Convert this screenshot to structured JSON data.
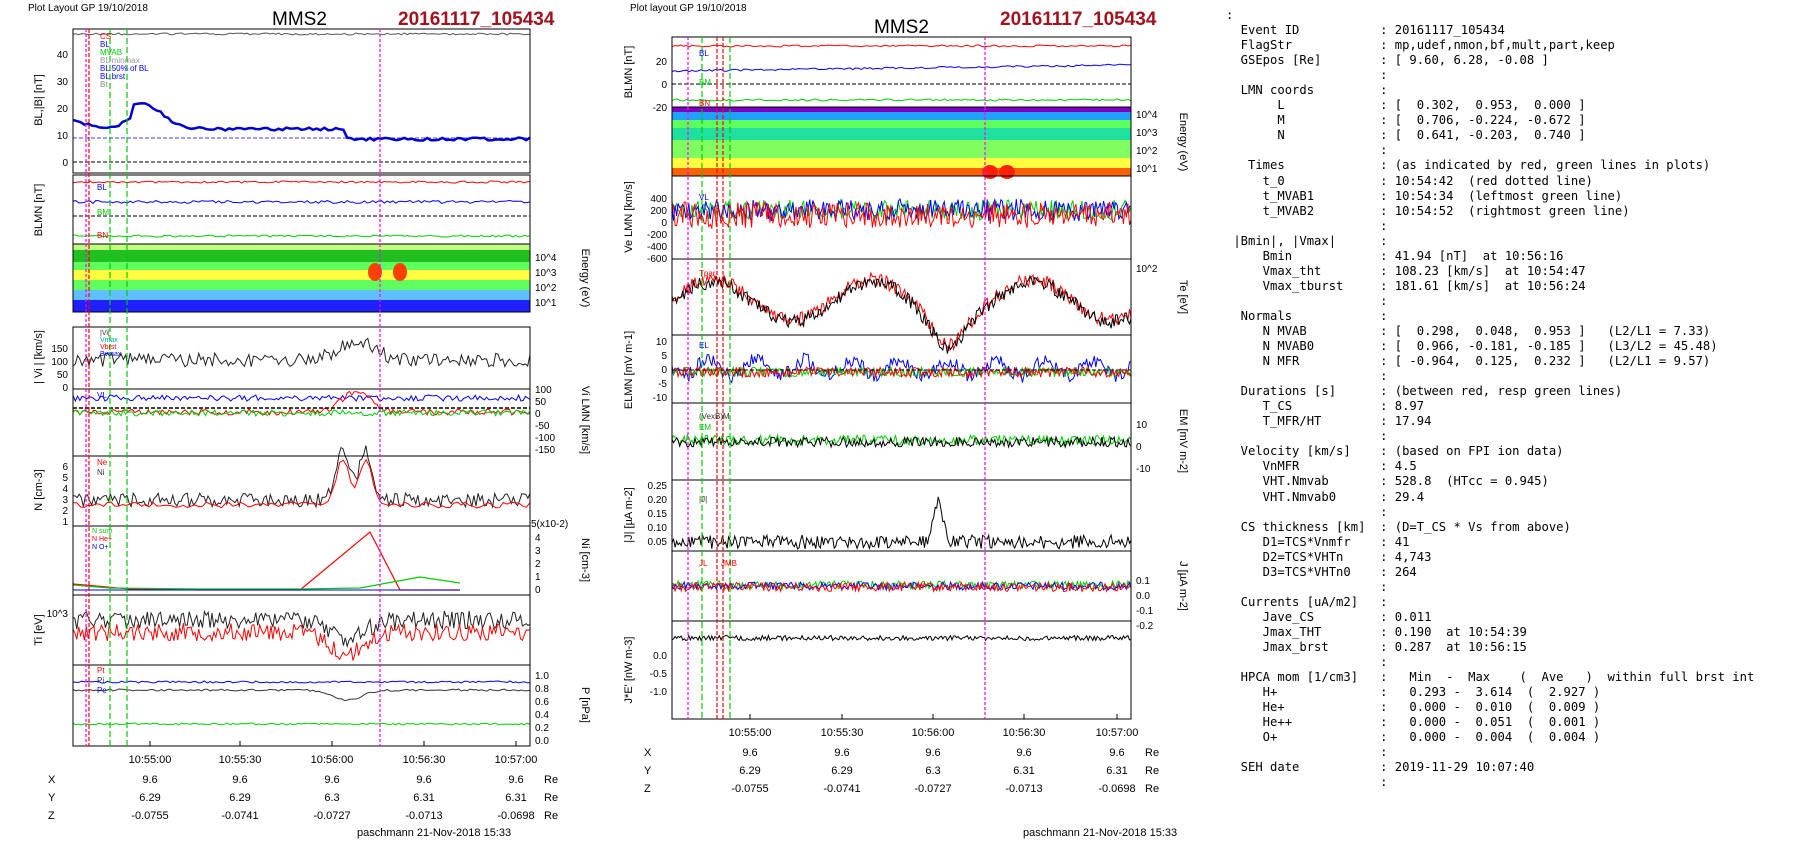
{
  "left_header": {
    "plot_label": "Plot Layout GP 19/10/2018",
    "spacecraft": "MMS2",
    "event": "20161117_105434"
  },
  "mid_header": {
    "plot_label": "Plot layout GP 19/10/2018",
    "spacecraft": "MMS2",
    "event": "20161117_105434"
  },
  "footer_left": "paschmann 21-Nov-2018 15:33",
  "footer_mid": "paschmann 21-Nov-2018 15:33",
  "colors": {
    "event": "#a0141e",
    "red": "#ff0000",
    "blue": "#0000ff",
    "green": "#00cc00",
    "magenta": "#ff00ff",
    "black": "#000000"
  },
  "time_ticks": [
    "10:55:00",
    "10:55:30",
    "10:56:00",
    "10:56:30",
    "10:57:00"
  ],
  "ephem": {
    "rows": [
      {
        "label": "X",
        "values": [
          "9.6",
          "9.6",
          "9.6",
          "9.6",
          "9.6"
        ],
        "unit": "Re"
      },
      {
        "label": "Y",
        "values": [
          "6.29",
          "6.29",
          "6.3",
          "6.31",
          "6.31"
        ],
        "unit": "Re"
      },
      {
        "label": "Z",
        "values": [
          "-0.0755",
          "-0.0741",
          "-0.0727",
          "-0.0713",
          "-0.0698"
        ],
        "unit": "Re"
      }
    ]
  },
  "left_panels": {
    "p1": {
      "ylabel": "BL,|B| [nT]",
      "legend": [
        "CS",
        "BL",
        "MVAB",
        "BL minmax",
        "BL 50% of BL",
        "BL brst",
        "Bt"
      ],
      "ticks": [
        "0",
        "10",
        "20",
        "30",
        "40"
      ]
    },
    "p2": {
      "ylabel": "BLMN [nT]",
      "legend": [
        "BL",
        "BM",
        "BN"
      ],
      "ticks": []
    },
    "p3": {
      "ylabel": "Energy (eV)",
      "ticks": [
        "10^1",
        "10^2",
        "10^3",
        "10^4"
      ]
    },
    "p4": {
      "ylabel": "| Vi | [km/s]",
      "legend": [
        "|Vi|",
        "Vmax",
        "Vbrst",
        "Bvmax"
      ],
      "ticks": [
        "0",
        "50",
        "100",
        "150"
      ]
    },
    "p5": {
      "ylabel": "Vi LMN [km/s]",
      "legend": [
        "VL"
      ],
      "ticks": [
        "100",
        "50",
        "0",
        "-50",
        "-100",
        "-150"
      ]
    },
    "p6": {
      "ylabel": "N [cm-3]",
      "legend": [
        "Ne",
        "Ni"
      ],
      "ticks": [
        "1",
        "2",
        "3",
        "4",
        "5",
        "6"
      ]
    },
    "p7": {
      "ylabel": "Ni [cm-3]",
      "legend": [
        "N sum",
        "N He+",
        "N O+"
      ],
      "ticks": [
        "0",
        "1",
        "2",
        "3",
        "4"
      ],
      "scale": "5(x10-2)"
    },
    "p8": {
      "ylabel": "Ti [eV]",
      "legend": [
        "Tpar",
        "Tperp"
      ],
      "ticks": [
        "10^3"
      ]
    },
    "p9": {
      "ylabel": "P [nPa]",
      "legend": [
        "Pt",
        "Pi",
        "Pe"
      ],
      "ticks": [
        "0.0",
        "0.2",
        "0.4",
        "0.6",
        "0.8",
        "1.0"
      ]
    }
  },
  "mid_panels": {
    "p1": {
      "ylabel": "BLMN [nT]",
      "legend": [
        "BL",
        "BM",
        "BN"
      ],
      "ticks": [
        "-20",
        "0",
        "20"
      ]
    },
    "p2": {
      "ylabel": "Energy (eV)",
      "ticks": [
        "10^1",
        "10^2",
        "10^3",
        "10^4"
      ]
    },
    "p3": {
      "ylabel": "Ve LMN [km/s]",
      "legend": [
        "VL"
      ],
      "ticks": [
        "400",
        "200",
        "0",
        "-200",
        "-400",
        "-600"
      ]
    },
    "p4": {
      "ylabel": "Te [eV]",
      "legend": [
        "Tpar"
      ],
      "ticks": [
        "10^2"
      ]
    },
    "p5": {
      "ylabel": "ELMN [mV m-1]",
      "legend": [
        "EL"
      ],
      "ticks": [
        "10",
        "5",
        "0",
        "-5",
        "-10"
      ]
    },
    "p6": {
      "ylabel": "EM [mV m-2]",
      "legend": [
        "(VexB)M",
        "EM"
      ],
      "ticks": [
        "10",
        "0",
        "-10"
      ]
    },
    "p7": {
      "ylabel": "|J| [µA m-2]",
      "legend": [
        "|J|"
      ],
      "ticks": [
        "0.05",
        "0.10",
        "0.15",
        "0.20",
        "0.25"
      ]
    },
    "p8": {
      "ylabel": "J [µA m-2]",
      "legend": [
        "JL",
        "JMB"
      ],
      "ticks": [
        "0.1",
        "0.0",
        "-0.1",
        "-0.2"
      ]
    },
    "p9": {
      "ylabel": "J*E' [nW m-3]",
      "ticks": [
        "0.0",
        "-0.5",
        "-1.0"
      ]
    }
  },
  "info_lines": [
    ":",
    "  Event ID           : 20161117_105434",
    "  FlagStr            : mp,udef,nmon,bf,mult,part,keep",
    "  GSEpos [Re]        : [ 9.60, 6.28, -0.08 ]",
    "                     :",
    "  LMN coords         :",
    "       L             : [  0.302,  0.953,  0.000 ]",
    "       M             : [  0.706, -0.224, -0.672 ]",
    "       N             : [  0.641, -0.203,  0.740 ]",
    "                     :",
    "   Times             : (as indicated by red, green lines in plots)",
    "     t_0             : 10:54:42  (red dotted line)",
    "     t_MVAB1         : 10:54:34  (leftmost green line)",
    "     t_MVAB2         : 10:54:52  (rightmost green line)",
    "                     :",
    " |Bmin|, |Vmax|      :",
    "     Bmin            : 41.94 [nT]  at 10:56:16",
    "     Vmax_tht        : 108.23 [km/s]  at 10:54:47",
    "     Vmax_tburst     : 181.61 [km/s]  at 10:56:24",
    "                     :",
    "  Normals            :",
    "     N MVAB          : [  0.298,  0.048,  0.953 ]   (L2/L1 = 7.33)",
    "     N MVAB0         : [  0.966, -0.181, -0.185 ]   (L3/L2 = 45.48)",
    "     N MFR           : [ -0.964,  0.125,  0.232 ]   (L2/L1 = 9.57)",
    "                     :",
    "  Durations [s]      : (between red, resp green lines)",
    "     T_CS            : 8.97",
    "     T_MFR/HT        : 17.94",
    "                     :",
    "  Velocity [km/s]    : (based on FPI ion data)",
    "     VnMFR           : 4.5",
    "     VHT.Nmvab       : 528.8  (HTcc = 0.945)",
    "     VHT.Nmvab0      : 29.4",
    "                     :",
    "  CS thickness [km]  : (D=T_CS * Vs from above)",
    "     D1=TCS*Vnmfr    : 41",
    "     D2=TCS*VHTn     : 4,743",
    "     D3=TCS*VHTn0    : 264",
    "                     :",
    "  Currents [uA/m2]   :",
    "     Jave_CS         : 0.011",
    "     Jmax_THT        : 0.190  at 10:54:39",
    "     Jmax_brst       : 0.287  at 10:56:15",
    "                     :",
    "  HPCA mom [1/cm3]   :   Min  -  Max    (  Ave   )  within full brst int",
    "     H+              :   0.293 -  3.614  (  2.927 )",
    "     He+             :   0.000 -  0.010  (  0.009 )",
    "     He++            :   0.000 -  0.051  (  0.001 )",
    "     O+              :   0.000 -  0.004  (  0.004 )",
    "                     :",
    "  SEH date           : 2019-11-29 10:07:40",
    "                     :"
  ],
  "chart_data": [
    {
      "type": "line",
      "title": "MMS2 20161117_105434 (left column)",
      "x_range": [
        "10:54:40",
        "10:57:10"
      ],
      "events": {
        "t_0": "10:54:42",
        "t_MVAB1": "10:54:34",
        "t_MVAB2": "10:54:52",
        "bmin_time": "10:56:16"
      }
    },
    {
      "type": "line",
      "title": "MMS2 20161117_105434 (middle column)",
      "x_range": [
        "10:54:40",
        "10:57:10"
      ]
    }
  ]
}
